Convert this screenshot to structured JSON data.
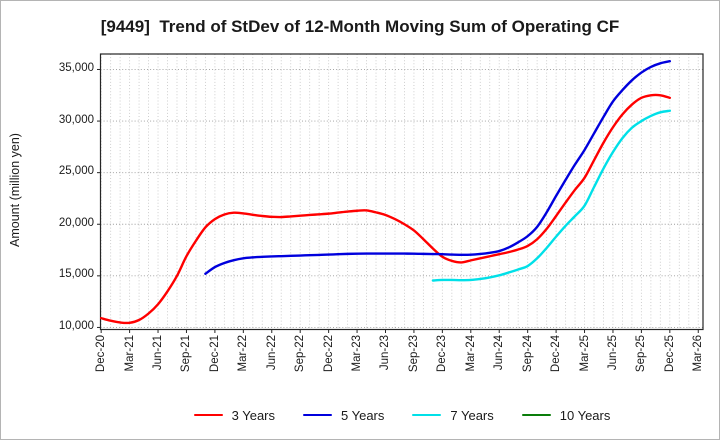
{
  "title": "[9449]  Trend of StDev of 12-Month Moving Sum of Operating CF",
  "ylabel": "Amount (million yen)",
  "legend": [
    {
      "label": "3 Years",
      "color": "#ff0000"
    },
    {
      "label": "5 Years",
      "color": "#0000dd"
    },
    {
      "label": "7 Years",
      "color": "#00e0e8"
    },
    {
      "label": "10 Years",
      "color": "#0a7d0a"
    }
  ],
  "chart_data": {
    "type": "line",
    "title": "[9449]  Trend of StDev of 12-Month Moving Sum of Operating CF",
    "xlabel": "",
    "ylabel": "Amount (million yen)",
    "grid": "dotted; vertical minor gridlines monthly, horizontal every 5000",
    "legend_position": "bottom center",
    "x_unit": "months since Dec-2020",
    "x_tick_labels": [
      "Dec-20",
      "Mar-21",
      "Jun-21",
      "Sep-21",
      "Dec-21",
      "Mar-22",
      "Jun-22",
      "Sep-22",
      "Dec-22",
      "Mar-23",
      "Jun-23",
      "Sep-23",
      "Dec-23",
      "Mar-24",
      "Jun-24",
      "Sep-24",
      "Dec-24",
      "Mar-25",
      "Jun-25",
      "Sep-25",
      "Dec-25",
      "Mar-26"
    ],
    "x_tick_months": [
      0,
      3,
      6,
      9,
      12,
      15,
      18,
      21,
      24,
      27,
      30,
      33,
      36,
      39,
      42,
      45,
      48,
      51,
      54,
      57,
      60,
      63
    ],
    "y_ticks": [
      10000,
      15000,
      20000,
      25000,
      30000,
      35000
    ],
    "y_tick_labels": [
      "10,000",
      "15,000",
      "20,000",
      "25,000",
      "30,000",
      "35,000"
    ],
    "ylim": [
      9800,
      36500
    ],
    "xlim_months": [
      -0.07,
      63.5
    ],
    "series": [
      {
        "name": "3 Years",
        "color": "#ff0000",
        "points": [
          [
            0,
            10900
          ],
          [
            1,
            10650
          ],
          [
            2,
            10480
          ],
          [
            3,
            10450
          ],
          [
            4,
            10720
          ],
          [
            5,
            11350
          ],
          [
            6,
            12250
          ],
          [
            7,
            13500
          ],
          [
            8,
            15000
          ],
          [
            9,
            16900
          ],
          [
            10,
            18400
          ],
          [
            11,
            19700
          ],
          [
            12,
            20500
          ],
          [
            13,
            20950
          ],
          [
            14,
            21120
          ],
          [
            15,
            21050
          ],
          [
            16,
            20920
          ],
          [
            17,
            20800
          ],
          [
            18,
            20720
          ],
          [
            19,
            20700
          ],
          [
            20,
            20760
          ],
          [
            21,
            20830
          ],
          [
            22,
            20900
          ],
          [
            23,
            20960
          ],
          [
            24,
            21030
          ],
          [
            25,
            21130
          ],
          [
            26,
            21230
          ],
          [
            27,
            21310
          ],
          [
            28,
            21340
          ],
          [
            29,
            21150
          ],
          [
            30,
            20900
          ],
          [
            31,
            20500
          ],
          [
            32,
            20000
          ],
          [
            33,
            19400
          ],
          [
            34,
            18550
          ],
          [
            35,
            17650
          ],
          [
            36,
            16850
          ],
          [
            37,
            16450
          ],
          [
            38,
            16300
          ],
          [
            39,
            16500
          ],
          [
            40,
            16700
          ],
          [
            41,
            16900
          ],
          [
            42,
            17100
          ],
          [
            43,
            17300
          ],
          [
            44,
            17550
          ],
          [
            45,
            17900
          ],
          [
            46,
            18550
          ],
          [
            47,
            19550
          ],
          [
            48,
            20800
          ],
          [
            49,
            22100
          ],
          [
            50,
            23350
          ],
          [
            51,
            24500
          ],
          [
            52,
            26200
          ],
          [
            53,
            27900
          ],
          [
            54,
            29400
          ],
          [
            55,
            30650
          ],
          [
            56,
            31600
          ],
          [
            57,
            32250
          ],
          [
            58,
            32500
          ],
          [
            59,
            32500
          ],
          [
            60,
            32250
          ]
        ]
      },
      {
        "name": "5 Years",
        "color": "#0000dd",
        "points": [
          [
            11,
            15200
          ],
          [
            12,
            15850
          ],
          [
            13,
            16250
          ],
          [
            14,
            16520
          ],
          [
            15,
            16700
          ],
          [
            16,
            16790
          ],
          [
            17,
            16840
          ],
          [
            18,
            16880
          ],
          [
            19,
            16910
          ],
          [
            20,
            16940
          ],
          [
            21,
            16970
          ],
          [
            22,
            17000
          ],
          [
            23,
            17030
          ],
          [
            24,
            17060
          ],
          [
            25,
            17100
          ],
          [
            26,
            17130
          ],
          [
            27,
            17150
          ],
          [
            28,
            17160
          ],
          [
            29,
            17160
          ],
          [
            30,
            17160
          ],
          [
            31,
            17160
          ],
          [
            32,
            17155
          ],
          [
            33,
            17150
          ],
          [
            34,
            17130
          ],
          [
            35,
            17110
          ],
          [
            36,
            17100
          ],
          [
            37,
            17060
          ],
          [
            38,
            17040
          ],
          [
            39,
            17050
          ],
          [
            40,
            17120
          ],
          [
            41,
            17230
          ],
          [
            42,
            17400
          ],
          [
            43,
            17750
          ],
          [
            44,
            18250
          ],
          [
            45,
            18850
          ],
          [
            46,
            19750
          ],
          [
            47,
            21150
          ],
          [
            48,
            22750
          ],
          [
            49,
            24300
          ],
          [
            50,
            25800
          ],
          [
            51,
            27200
          ],
          [
            52,
            28800
          ],
          [
            53,
            30400
          ],
          [
            54,
            31900
          ],
          [
            55,
            33000
          ],
          [
            56,
            33950
          ],
          [
            57,
            34700
          ],
          [
            58,
            35250
          ],
          [
            59,
            35600
          ],
          [
            60,
            35800
          ]
        ]
      },
      {
        "name": "7 Years",
        "color": "#00e0e8",
        "points": [
          [
            35,
            14550
          ],
          [
            36,
            14600
          ],
          [
            37,
            14600
          ],
          [
            38,
            14580
          ],
          [
            39,
            14600
          ],
          [
            40,
            14700
          ],
          [
            41,
            14850
          ],
          [
            42,
            15050
          ],
          [
            43,
            15320
          ],
          [
            44,
            15620
          ],
          [
            45,
            15950
          ],
          [
            46,
            16700
          ],
          [
            47,
            17700
          ],
          [
            48,
            18800
          ],
          [
            49,
            19850
          ],
          [
            50,
            20800
          ],
          [
            51,
            21800
          ],
          [
            52,
            23600
          ],
          [
            53,
            25400
          ],
          [
            54,
            27000
          ],
          [
            55,
            28350
          ],
          [
            56,
            29350
          ],
          [
            57,
            30000
          ],
          [
            58,
            30500
          ],
          [
            59,
            30850
          ],
          [
            60,
            31000
          ]
        ]
      },
      {
        "name": "10 Years",
        "color": "#0a7d0a",
        "points": []
      }
    ]
  }
}
